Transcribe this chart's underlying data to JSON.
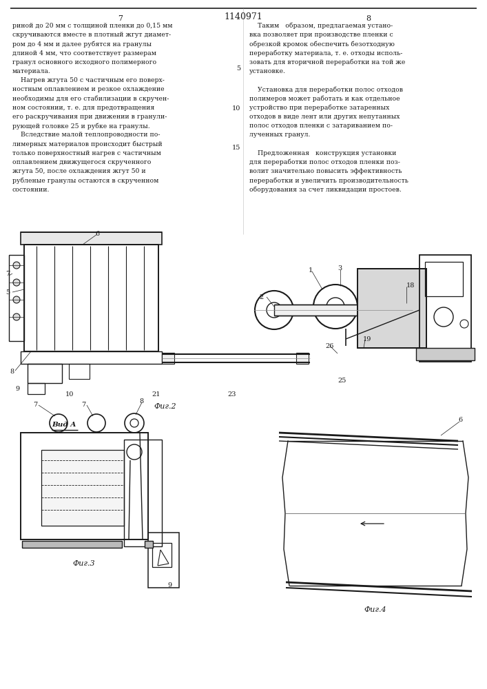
{
  "page_number_center": "1140971",
  "page_left": "7",
  "page_right": "8",
  "line_number_5": "5",
  "line_number_10": "10",
  "line_number_15": "15",
  "text_left_col": [
    "риной до 20 мм с толщиной пленки до 0,15 мм",
    "скручиваются вместе в плотный жгут диамет-",
    "ром до 4 мм и далее рубятся на гранулы",
    "длиной 4 мм, что соответствует размерам",
    "гранул основного исходного полимерного",
    "материала.",
    "    Нагрев жгута 50 с частичным его поверх-",
    "ностным оплавлением и резкое охлаждение",
    "необходимы для его стабилизации в скручен-",
    "ном состоянии, т. е. для предотвращения",
    "его раскручивания при движении в гранули-",
    "рующей головке 25 и рубке на гранулы.",
    "    Вследствие малой теплопроводности по-",
    "лимерных материалов происходит быстрый",
    "только поверхностный нагрев с частичным",
    "оплавлением движущегося скрученного",
    "жгута 50, после охлаждения жгут 50 и",
    "рубленые гранулы остаются в скрученном",
    "состоянии."
  ],
  "text_right_col": [
    "    Таким   образом, предлагаемая устано-",
    "вка позволяет при производстве пленки с",
    "обрезкой кромок обеспечить безотходную",
    "переработку материала, т. е. отходы исполь-",
    "зовать для вторичной переработки на той же",
    "установке.",
    "",
    "    Установка для переработки полос отходов",
    "полимеров может работать и как отдельное",
    "устройство при переработке затаренных",
    "отходов в виде лент или других непутанных",
    "полос отходов пленки с затариванием по-",
    "лученных гранул.",
    "",
    "    Предложенная   конструкция установки",
    "для переработки полос отходов пленки поз-",
    "волит значительно повысить эффективность",
    "переработки и увеличить производительность",
    "оборудования за счет ликвидации простоев."
  ],
  "fig2_label": "Фиг.2",
  "fig3_label": "Фиг.3",
  "fig4_label": "Фиг.4",
  "vid_a_label": "Вид А",
  "background_color": "#ffffff",
  "text_color": "#1a1a1a",
  "line_color": "#1a1a1a"
}
